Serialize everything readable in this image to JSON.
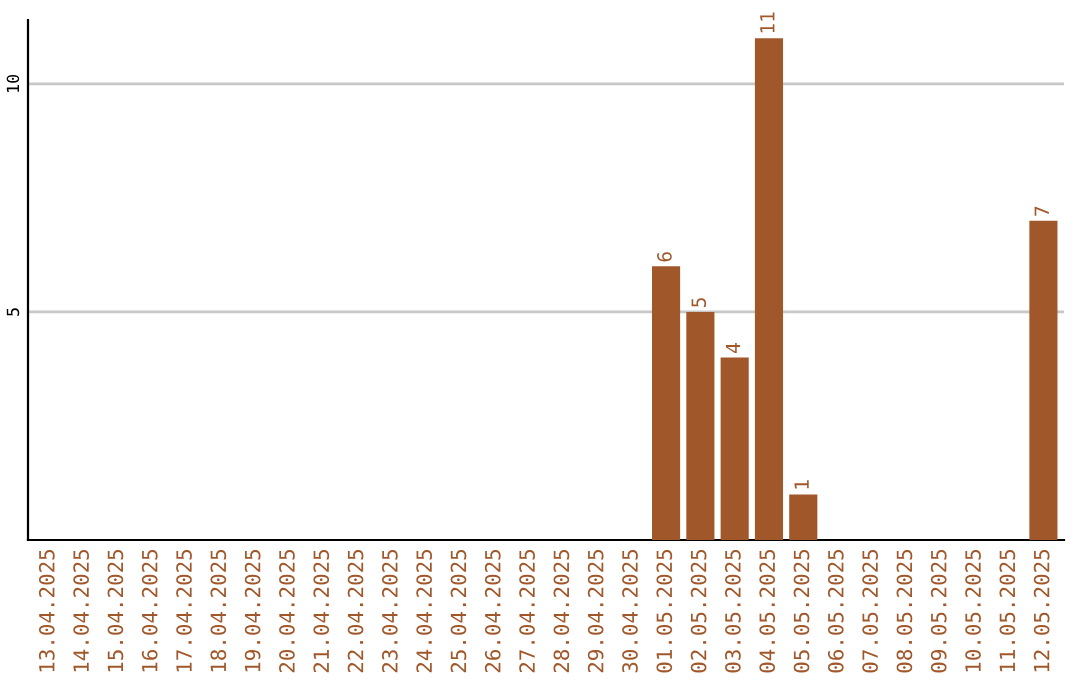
{
  "chart_data": {
    "type": "bar",
    "categories": [
      "13.04.2025",
      "14.04.2025",
      "15.04.2025",
      "16.04.2025",
      "17.04.2025",
      "18.04.2025",
      "19.04.2025",
      "20.04.2025",
      "21.04.2025",
      "22.04.2025",
      "23.04.2025",
      "24.04.2025",
      "25.04.2025",
      "26.04.2025",
      "27.04.2025",
      "28.04.2025",
      "29.04.2025",
      "30.04.2025",
      "01.05.2025",
      "02.05.2025",
      "03.05.2025",
      "04.05.2025",
      "05.05.2025",
      "06.05.2025",
      "07.05.2025",
      "08.05.2025",
      "09.05.2025",
      "10.05.2025",
      "11.05.2025",
      "12.05.2025"
    ],
    "values": [
      0,
      0,
      0,
      0,
      0,
      0,
      0,
      0,
      0,
      0,
      0,
      0,
      0,
      0,
      0,
      0,
      0,
      0,
      6,
      5,
      4,
      11,
      1,
      0,
      0,
      0,
      0,
      0,
      0,
      7
    ],
    "value_labels": [
      null,
      null,
      null,
      null,
      null,
      null,
      null,
      null,
      null,
      null,
      null,
      null,
      null,
      null,
      null,
      null,
      null,
      null,
      "6",
      "5",
      "4",
      "11",
      "1",
      null,
      null,
      null,
      null,
      null,
      null,
      "7"
    ],
    "color": "#a0572a",
    "ylim": [
      0,
      11.4
    ],
    "yticks": [
      5,
      10
    ],
    "grid": "y"
  }
}
